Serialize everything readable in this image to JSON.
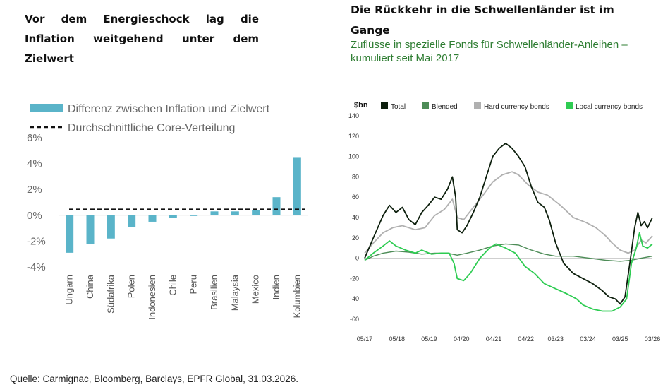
{
  "left": {
    "title": "Vor dem Energieschock lag die Inflation weitgehend unter dem Zielwert"
  },
  "right": {
    "title": "Die Rückkehr in die Schwellenländer ist im Gange",
    "subtitle": "Zuflüsse in spezielle Fonds für Schwellenländer-Anleihen – kumuliert seit Mai 2017"
  },
  "source": "Quelle: Carmignac, Bloomberg, Barclays, EPFR Global, 31.03.2026.",
  "chart_data": [
    {
      "type": "bar",
      "title": "Vor dem Energieschock lag die Inflation weitgehend unter dem Zielwert",
      "categories": [
        "Ungarn",
        "China",
        "Südafrika",
        "Polen",
        "Indonesien",
        "Chile",
        "Peru",
        "Brasilien",
        "Malaysia",
        "Mexico",
        "Indien",
        "Kolumbien"
      ],
      "series": [
        {
          "name": "Differenz zwischen Inflation und Zielwert",
          "values": [
            -2.9,
            -2.2,
            -1.8,
            -0.9,
            -0.5,
            -0.2,
            -0.05,
            0.3,
            0.3,
            0.4,
            1.4,
            4.5
          ],
          "color": "#5ab4c9"
        }
      ],
      "reference_line": {
        "name": "Durchschnittliche Core-Verteilung",
        "value": 0.45,
        "style": "dashed",
        "color": "#111111"
      },
      "ylim": [
        -4,
        6
      ],
      "yticks": [
        -4,
        -2,
        0,
        2,
        4,
        6
      ],
      "ytick_labels": [
        "-4%",
        "-2%",
        "0%",
        "2%",
        "4%",
        "6%"
      ],
      "legend": "top"
    },
    {
      "type": "line",
      "title": "Die Rückkehr in die Schwellenländer ist im Gange",
      "subtitle": "Zuflüsse in spezielle Fonds für Schwellenländer-Anleihen – kumuliert seit Mai 2017",
      "ylabel": "$bn",
      "ylim": [
        -60,
        140
      ],
      "yticks": [
        -60,
        -40,
        -20,
        0,
        20,
        40,
        60,
        80,
        100,
        120,
        140
      ],
      "xlim": [
        2017.33,
        2026.25
      ],
      "xtick_values": [
        2017.33,
        2018.33,
        2019.33,
        2020.33,
        2021.33,
        2022.33,
        2023.25,
        2024.25,
        2025.25,
        2026.25
      ],
      "xtick_labels": [
        "05/17",
        "05/18",
        "05/19",
        "04/20",
        "04/21",
        "04/22",
        "03/23",
        "03/24",
        "03/25",
        "03/26"
      ],
      "legend": "top",
      "series": [
        {
          "name": "Total",
          "color": "#0d1f0d",
          "width": 1.8,
          "points": [
            [
              2017.33,
              0
            ],
            [
              2017.6,
              20
            ],
            [
              2017.9,
              42
            ],
            [
              2018.1,
              52
            ],
            [
              2018.3,
              45
            ],
            [
              2018.5,
              50
            ],
            [
              2018.7,
              38
            ],
            [
              2018.9,
              33
            ],
            [
              2019.1,
              45
            ],
            [
              2019.3,
              52
            ],
            [
              2019.5,
              60
            ],
            [
              2019.7,
              58
            ],
            [
              2019.9,
              68
            ],
            [
              2020.05,
              80
            ],
            [
              2020.15,
              60
            ],
            [
              2020.2,
              28
            ],
            [
              2020.35,
              25
            ],
            [
              2020.5,
              32
            ],
            [
              2020.7,
              45
            ],
            [
              2020.9,
              60
            ],
            [
              2021.1,
              80
            ],
            [
              2021.3,
              100
            ],
            [
              2021.5,
              108
            ],
            [
              2021.7,
              113
            ],
            [
              2021.9,
              108
            ],
            [
              2022.1,
              100
            ],
            [
              2022.3,
              90
            ],
            [
              2022.5,
              70
            ],
            [
              2022.7,
              55
            ],
            [
              2022.9,
              50
            ],
            [
              2023.05,
              38
            ],
            [
              2023.25,
              15
            ],
            [
              2023.5,
              -5
            ],
            [
              2023.8,
              -15
            ],
            [
              2024.1,
              -20
            ],
            [
              2024.4,
              -25
            ],
            [
              2024.7,
              -32
            ],
            [
              2024.9,
              -38
            ],
            [
              2025.1,
              -40
            ],
            [
              2025.25,
              -45
            ],
            [
              2025.4,
              -38
            ],
            [
              2025.55,
              -5
            ],
            [
              2025.7,
              30
            ],
            [
              2025.8,
              45
            ],
            [
              2025.9,
              32
            ],
            [
              2026.0,
              36
            ],
            [
              2026.1,
              30
            ],
            [
              2026.25,
              40
            ]
          ]
        },
        {
          "name": "Blended",
          "color": "#4d8c57",
          "width": 1.4,
          "points": [
            [
              2017.33,
              -2
            ],
            [
              2017.6,
              2
            ],
            [
              2017.9,
              5
            ],
            [
              2018.3,
              7
            ],
            [
              2018.7,
              6
            ],
            [
              2019.1,
              4
            ],
            [
              2019.5,
              5
            ],
            [
              2019.9,
              5
            ],
            [
              2020.2,
              3
            ],
            [
              2020.5,
              5
            ],
            [
              2020.9,
              8
            ],
            [
              2021.3,
              12
            ],
            [
              2021.7,
              14
            ],
            [
              2022.1,
              13
            ],
            [
              2022.5,
              8
            ],
            [
              2022.9,
              4
            ],
            [
              2023.25,
              2
            ],
            [
              2023.8,
              2
            ],
            [
              2024.3,
              0
            ],
            [
              2024.8,
              -2
            ],
            [
              2025.25,
              -3
            ],
            [
              2025.6,
              -2
            ],
            [
              2025.9,
              0
            ],
            [
              2026.25,
              2
            ]
          ]
        },
        {
          "name": "Hard currency bonds",
          "color": "#b0b0b0",
          "width": 1.8,
          "points": [
            [
              2017.33,
              5
            ],
            [
              2017.6,
              15
            ],
            [
              2017.9,
              25
            ],
            [
              2018.2,
              30
            ],
            [
              2018.5,
              32
            ],
            [
              2018.9,
              28
            ],
            [
              2019.2,
              30
            ],
            [
              2019.5,
              42
            ],
            [
              2019.8,
              48
            ],
            [
              2020.05,
              58
            ],
            [
              2020.2,
              40
            ],
            [
              2020.4,
              38
            ],
            [
              2020.7,
              50
            ],
            [
              2021.0,
              62
            ],
            [
              2021.3,
              75
            ],
            [
              2021.6,
              82
            ],
            [
              2021.9,
              85
            ],
            [
              2022.1,
              82
            ],
            [
              2022.4,
              72
            ],
            [
              2022.7,
              65
            ],
            [
              2023.0,
              62
            ],
            [
              2023.4,
              52
            ],
            [
              2023.8,
              40
            ],
            [
              2024.2,
              35
            ],
            [
              2024.5,
              30
            ],
            [
              2024.8,
              22
            ],
            [
              2025.0,
              15
            ],
            [
              2025.25,
              8
            ],
            [
              2025.5,
              5
            ],
            [
              2025.7,
              8
            ],
            [
              2025.9,
              18
            ],
            [
              2026.05,
              15
            ],
            [
              2026.25,
              22
            ]
          ]
        },
        {
          "name": "Local currency bonds",
          "color": "#2ecc52",
          "width": 1.8,
          "points": [
            [
              2017.33,
              -2
            ],
            [
              2017.6,
              5
            ],
            [
              2017.9,
              12
            ],
            [
              2018.1,
              17
            ],
            [
              2018.3,
              12
            ],
            [
              2018.6,
              8
            ],
            [
              2018.9,
              5
            ],
            [
              2019.1,
              8
            ],
            [
              2019.4,
              4
            ],
            [
              2019.7,
              5
            ],
            [
              2019.95,
              5
            ],
            [
              2020.1,
              -5
            ],
            [
              2020.2,
              -20
            ],
            [
              2020.4,
              -22
            ],
            [
              2020.6,
              -15
            ],
            [
              2020.9,
              0
            ],
            [
              2021.2,
              10
            ],
            [
              2021.4,
              14
            ],
            [
              2021.7,
              10
            ],
            [
              2022.0,
              5
            ],
            [
              2022.3,
              -8
            ],
            [
              2022.6,
              -15
            ],
            [
              2022.9,
              -25
            ],
            [
              2023.25,
              -30
            ],
            [
              2023.6,
              -35
            ],
            [
              2023.9,
              -40
            ],
            [
              2024.1,
              -46
            ],
            [
              2024.4,
              -50
            ],
            [
              2024.7,
              -52
            ],
            [
              2025.0,
              -52
            ],
            [
              2025.25,
              -48
            ],
            [
              2025.45,
              -40
            ],
            [
              2025.6,
              -5
            ],
            [
              2025.75,
              10
            ],
            [
              2025.85,
              25
            ],
            [
              2025.95,
              12
            ],
            [
              2026.1,
              10
            ],
            [
              2026.25,
              14
            ]
          ]
        }
      ]
    }
  ]
}
